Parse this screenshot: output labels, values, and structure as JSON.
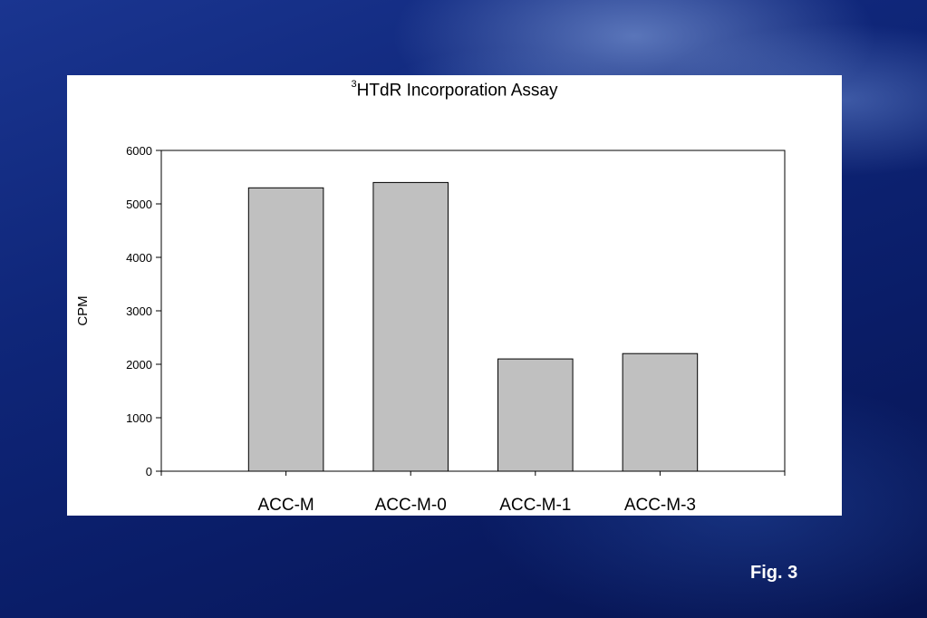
{
  "slide": {
    "fig_label": "Fig. 3"
  },
  "chart_data": {
    "type": "bar",
    "title_sup": "3",
    "title": "HTdR Incorporation Assay",
    "ylabel": "CPM",
    "xlabel": "",
    "categories": [
      "ACC-M",
      "ACC-M-0",
      "ACC-M-1",
      "ACC-M-3"
    ],
    "values": [
      5300,
      5400,
      2100,
      2200
    ],
    "ylim": [
      0,
      6000
    ],
    "yticks": [
      0,
      1000,
      2000,
      3000,
      4000,
      5000,
      6000
    ],
    "bar_color": "#c0c0c0",
    "grid": false,
    "legend": "none"
  }
}
